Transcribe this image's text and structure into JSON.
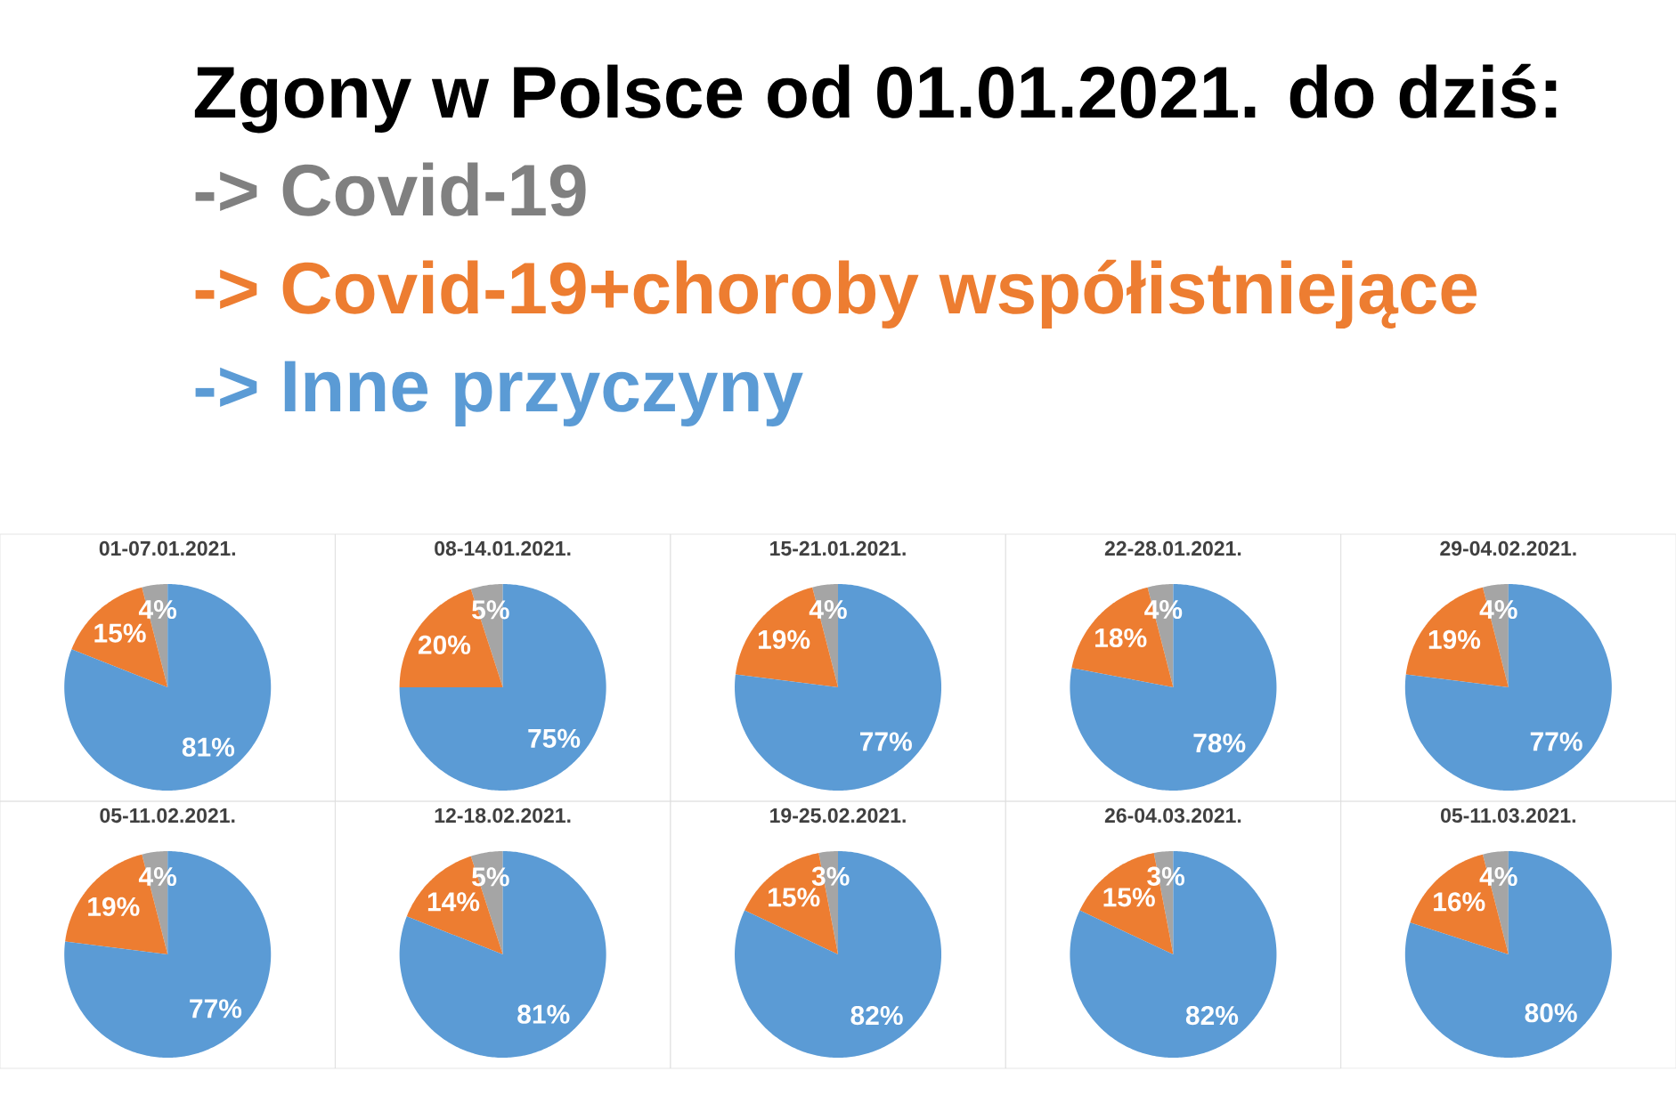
{
  "chart_data": [
    {
      "type": "other",
      "title": "Zgony w Polsce od 01.01.2021. do dziś:",
      "categories": [
        "-> Covid-19",
        "-> Covid-19+choroby współistniejące",
        "-> Inne przyczyny"
      ],
      "colors": [
        "#808080",
        "#ed7d31",
        "#5b9bd5"
      ]
    },
    {
      "type": "pie",
      "title": "01-07.01.2021.",
      "categories": [
        null,
        null,
        null
      ],
      "values": [
        4,
        15,
        81
      ],
      "colors": [
        "#a5a5a5",
        "#ed7d31",
        "#5b9bd5"
      ],
      "value_labels": [
        "4%",
        "15%",
        "81%"
      ]
    },
    {
      "type": "pie",
      "title": "08-14.01.2021.",
      "categories": [
        null,
        null,
        null
      ],
      "values": [
        5,
        20,
        75
      ],
      "colors": [
        "#a5a5a5",
        "#ed7d31",
        "#5b9bd5"
      ],
      "value_labels": [
        "5%",
        "20%",
        "75%"
      ]
    },
    {
      "type": "pie",
      "title": "15-21.01.2021.",
      "categories": [
        null,
        null,
        null
      ],
      "values": [
        4,
        19,
        77
      ],
      "colors": [
        "#a5a5a5",
        "#ed7d31",
        "#5b9bd5"
      ],
      "value_labels": [
        "4%",
        "19%",
        "77%"
      ]
    },
    {
      "type": "pie",
      "title": "22-28.01.2021.",
      "categories": [
        null,
        null,
        null
      ],
      "values": [
        4,
        18,
        78
      ],
      "colors": [
        "#a5a5a5",
        "#ed7d31",
        "#5b9bd5"
      ],
      "value_labels": [
        "4%",
        "18%",
        "78%"
      ]
    },
    {
      "type": "pie",
      "title": "29-04.02.2021.",
      "categories": [
        null,
        null,
        null
      ],
      "values": [
        4,
        19,
        77
      ],
      "colors": [
        "#a5a5a5",
        "#ed7d31",
        "#5b9bd5"
      ],
      "value_labels": [
        "4%",
        "19%",
        "77%"
      ]
    },
    {
      "type": "pie",
      "title": "05-11.02.2021.",
      "categories": [
        null,
        null,
        null
      ],
      "values": [
        4,
        19,
        77
      ],
      "colors": [
        "#a5a5a5",
        "#ed7d31",
        "#5b9bd5"
      ],
      "value_labels": [
        "4%",
        "19%",
        "77%"
      ]
    },
    {
      "type": "pie",
      "title": "12-18.02.2021.",
      "categories": [
        null,
        null,
        null
      ],
      "values": [
        5,
        14,
        81
      ],
      "colors": [
        "#a5a5a5",
        "#ed7d31",
        "#5b9bd5"
      ],
      "value_labels": [
        "5%",
        "14%",
        "81%"
      ]
    },
    {
      "type": "pie",
      "title": "19-25.02.2021.",
      "categories": [
        null,
        null,
        null
      ],
      "values": [
        3,
        15,
        82
      ],
      "colors": [
        "#a5a5a5",
        "#ed7d31",
        "#5b9bd5"
      ],
      "value_labels": [
        "3%",
        "15%",
        "82%"
      ]
    },
    {
      "type": "pie",
      "title": "26-04.03.2021.",
      "categories": [
        null,
        null,
        null
      ],
      "values": [
        3,
        15,
        82
      ],
      "colors": [
        "#a5a5a5",
        "#ed7d31",
        "#5b9bd5"
      ],
      "value_labels": [
        "3%",
        "15%",
        "82%"
      ]
    },
    {
      "type": "pie",
      "title": "05-11.03.2021.",
      "categories": [
        null,
        null,
        null
      ],
      "values": [
        4,
        16,
        80
      ],
      "colors": [
        "#a5a5a5",
        "#ed7d31",
        "#5b9bd5"
      ],
      "value_labels": [
        "4%",
        "16%",
        "80%"
      ]
    }
  ]
}
